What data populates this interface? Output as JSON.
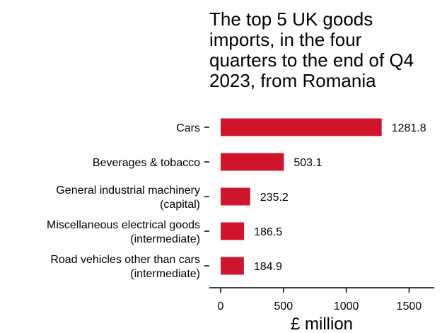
{
  "chart_data": {
    "type": "bar",
    "orientation": "horizontal",
    "title": "The top 5 UK goods imports, in the four quarters to the end of Q4 2023, from Romania",
    "title_lines": [
      "The top 5 UK goods",
      "imports, in the four",
      "quarters to the end of Q4",
      "2023, from Romania"
    ],
    "categories": [
      "Cars",
      "Beverages & tobacco",
      "General industrial machinery (capital)",
      "Miscellaneous electrical goods (intermediate)",
      "Road vehicles other than cars (intermediate)"
    ],
    "category_lines": [
      [
        "Cars"
      ],
      [
        "Beverages & tobacco"
      ],
      [
        "General industrial machinery",
        "(capital)"
      ],
      [
        "Miscellaneous electrical goods",
        "(intermediate)"
      ],
      [
        "Road vehicles other than cars",
        "(intermediate)"
      ]
    ],
    "values": [
      1281.8,
      503.1,
      235.2,
      186.5,
      184.9
    ],
    "value_labels": [
      "1281.8",
      "503.1",
      "235.2",
      "186.5",
      "184.9"
    ],
    "xlabel": "£ million",
    "ylabel": "",
    "xlim": [
      0,
      1700
    ],
    "xticks": [
      0,
      500,
      1000,
      1500
    ],
    "xtick_labels": [
      "0",
      "500",
      "1000",
      "1500"
    ],
    "grid": false,
    "legend": "none",
    "bar_color": "#CF142B",
    "text_color": "#000000"
  }
}
